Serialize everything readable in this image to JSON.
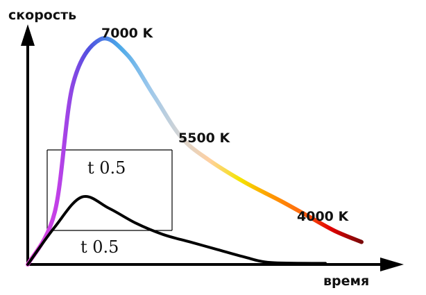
{
  "chart_data": {
    "type": "line",
    "ylabel": "скорость",
    "xlabel": "время",
    "series": [
      {
        "name": "",
        "kind": "spectrum",
        "points": [
          [
            0,
            0
          ],
          [
            3,
            14
          ],
          [
            5,
            48
          ],
          [
            8,
            60
          ],
          [
            11,
            56
          ],
          [
            14,
            45
          ],
          [
            17,
            34
          ],
          [
            20,
            28
          ],
          [
            24,
            22
          ],
          [
            28,
            17
          ],
          [
            31,
            13
          ],
          [
            34,
            9
          ],
          [
            37,
            6
          ]
        ]
      },
      {
        "name": "",
        "kind": "black",
        "points": [
          [
            0,
            0
          ],
          [
            3,
            10
          ],
          [
            6,
            18
          ],
          [
            9,
            15
          ],
          [
            12,
            11
          ],
          [
            15,
            8
          ],
          [
            18,
            6
          ],
          [
            21,
            4
          ],
          [
            24,
            2
          ],
          [
            27,
            0.5
          ],
          [
            33,
            0.3
          ]
        ]
      }
    ],
    "annotations": [
      {
        "text": "7000 K",
        "key": "peak"
      },
      {
        "text": "5500 K",
        "key": "mid"
      },
      {
        "text": "4000 K",
        "key": "tail"
      }
    ],
    "half_labels": [
      "t 0.5",
      "t 0.5"
    ],
    "spectrum_colors": [
      "#7a0a0a",
      "#e00000",
      "#ff6a10",
      "#ff9a00",
      "#f4e400",
      "#ffd0a0",
      "#d4d4d4",
      "#9cc8ec",
      "#4aa8e8",
      "#5050e0",
      "#c040e8",
      "#e84ad8"
    ]
  }
}
